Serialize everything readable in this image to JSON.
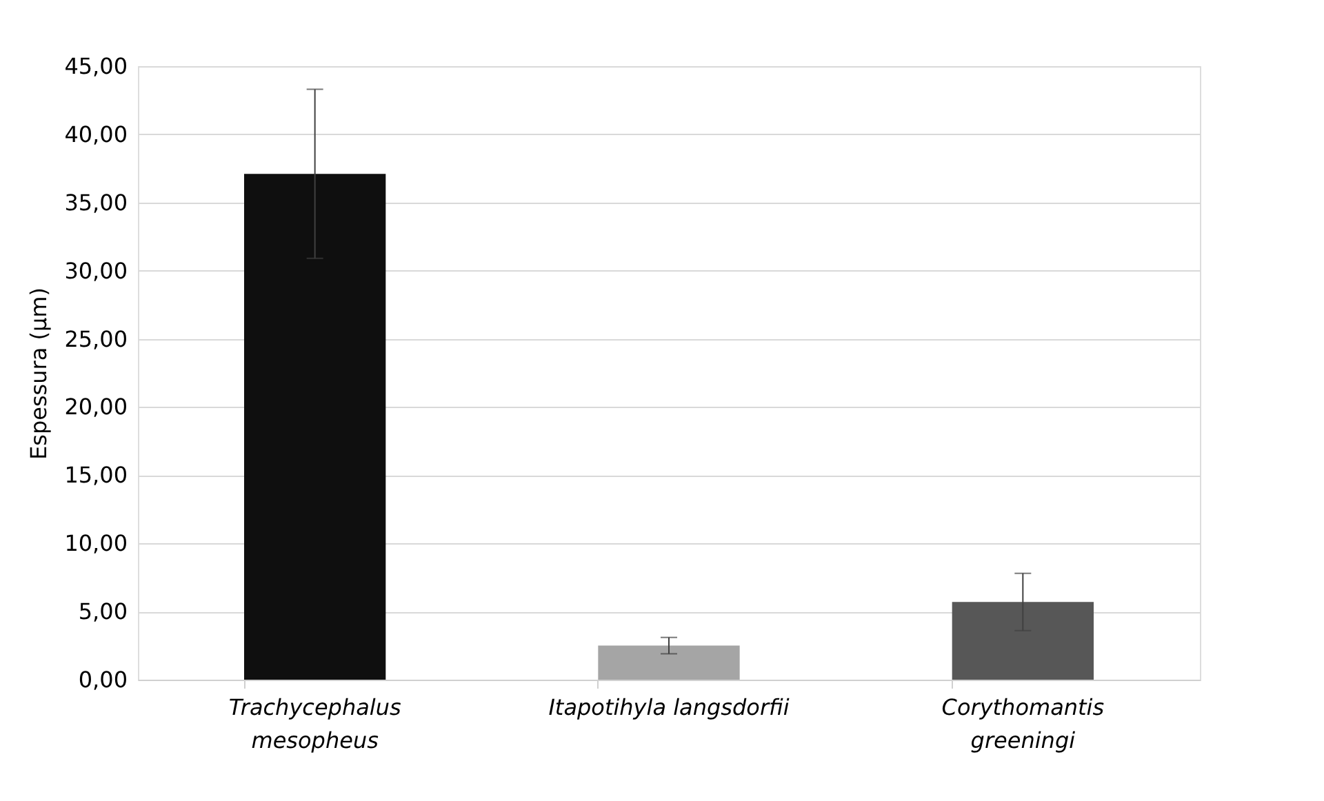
{
  "chart_data": {
    "type": "bar",
    "ylabel": "Espessura (µm)",
    "categories": [
      "Trachycephalus mesopheus",
      "Itapotihyla langsdorfii",
      "Corythomantis greeningi"
    ],
    "values": [
      37.1,
      2.5,
      5.7
    ],
    "colors": [
      "#0f0f0f",
      "#a5a5a5",
      "#575757"
    ],
    "errors": [
      6.2,
      0.6,
      2.1
    ],
    "ylim": [
      0,
      45
    ],
    "yticks": [
      {
        "value": 0,
        "label": "0,00"
      },
      {
        "value": 5,
        "label": "5,00"
      },
      {
        "value": 10,
        "label": "10,00"
      },
      {
        "value": 15,
        "label": "15,00"
      },
      {
        "value": 20,
        "label": "20,00"
      },
      {
        "value": 25,
        "label": "25,00"
      },
      {
        "value": 30,
        "label": "30,00"
      },
      {
        "value": 35,
        "label": "35,00"
      },
      {
        "value": 40,
        "label": "40,00"
      },
      {
        "value": 45,
        "label": "45,00"
      }
    ],
    "grid": "y"
  }
}
